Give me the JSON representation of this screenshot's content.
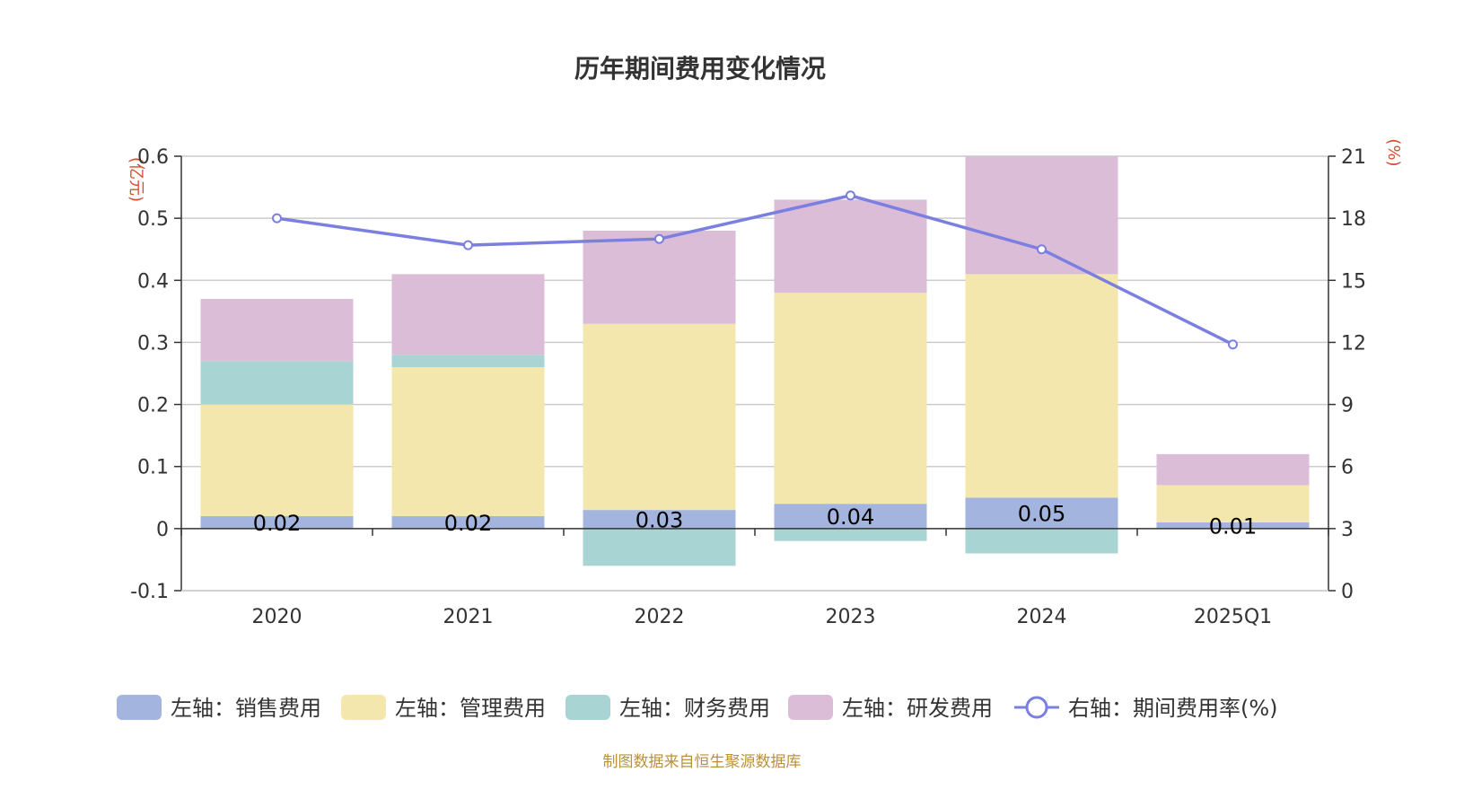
{
  "chart_data": {
    "type": "bar",
    "title": "历年期间费用变化情况",
    "categories": [
      "2020",
      "2021",
      "2022",
      "2023",
      "2024",
      "2025Q1"
    ],
    "left_axis": {
      "unit": "(亿元)",
      "ylim": [
        -0.1,
        0.6
      ],
      "ticks": [
        "-0.1",
        "0",
        "0.1",
        "0.2",
        "0.3",
        "0.4",
        "0.5",
        "0.6"
      ]
    },
    "right_axis": {
      "unit": "(%)",
      "ylim": [
        0,
        21
      ],
      "ticks": [
        "0",
        "3",
        "6",
        "9",
        "12",
        "15",
        "18",
        "21"
      ]
    },
    "series": [
      {
        "name": "左轴：销售费用",
        "type": "bar",
        "color": "#a3b5de",
        "values": [
          0.02,
          0.02,
          0.03,
          0.04,
          0.05,
          0.01
        ],
        "labels": [
          "0.02",
          "0.02",
          "0.03",
          "0.04",
          "0.05",
          "0.01"
        ]
      },
      {
        "name": "左轴：管理费用",
        "type": "bar",
        "color": "#f3e7ad",
        "values": [
          0.18,
          0.24,
          0.3,
          0.34,
          0.36,
          0.06
        ]
      },
      {
        "name": "左轴：财务费用",
        "type": "bar",
        "color": "#a8d4d4",
        "values": [
          0.07,
          0.02,
          -0.06,
          -0.02,
          -0.04,
          0.0
        ]
      },
      {
        "name": "左轴：研发费用",
        "type": "bar",
        "color": "#dcbdd7",
        "values": [
          0.1,
          0.13,
          0.15,
          0.15,
          0.19,
          0.05
        ]
      },
      {
        "name": "右轴：期间费用率(%)",
        "type": "line",
        "color": "#7b7fe0",
        "values": [
          18.0,
          16.7,
          17.0,
          19.1,
          16.5,
          11.9
        ]
      }
    ],
    "grid": true,
    "legend_position": "bottom",
    "source": "制图数据来自恒生聚源数据库"
  }
}
